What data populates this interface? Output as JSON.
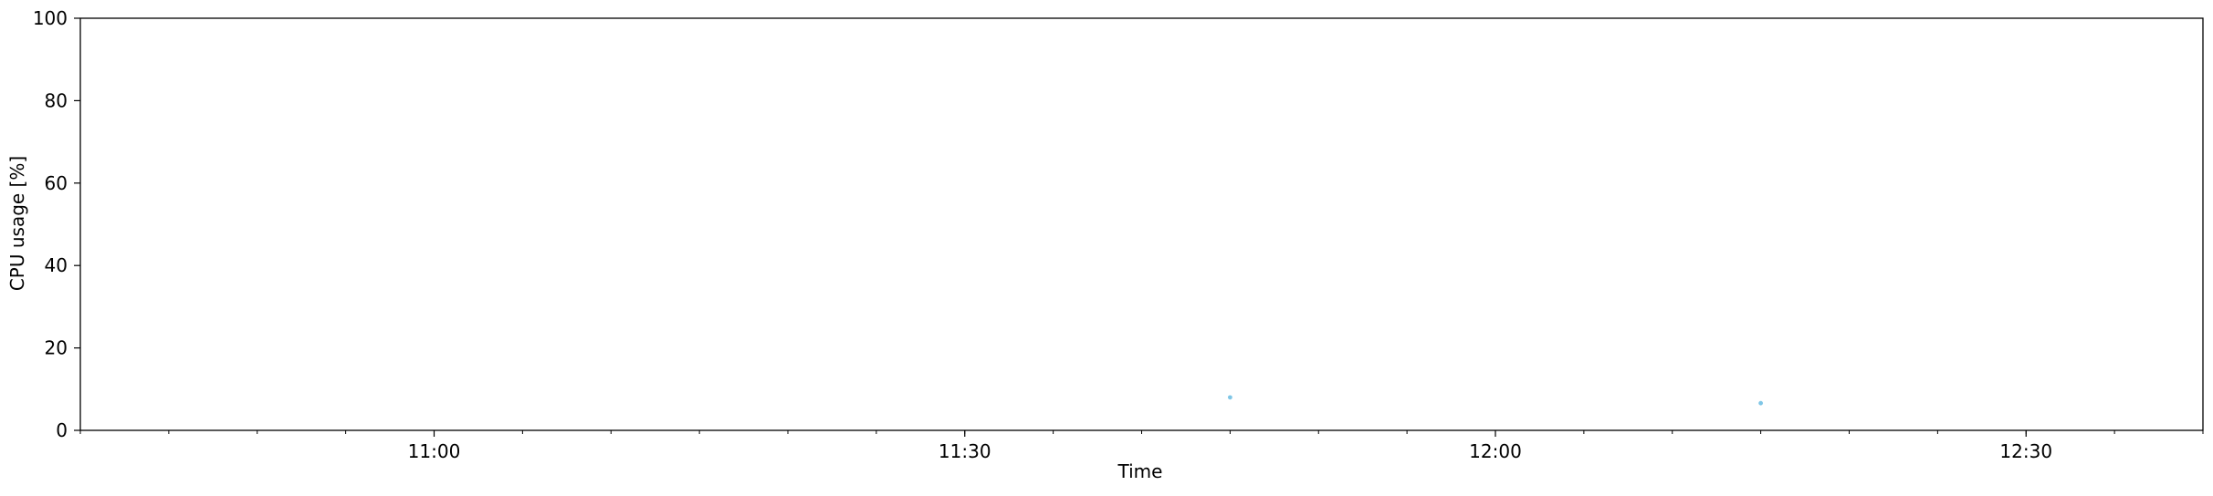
{
  "chart_data": {
    "type": "scatter",
    "title": "",
    "xlabel": "Time",
    "ylabel": "CPU usage [%]",
    "x_axis_type": "time",
    "xlim": [
      "10:40",
      "12:40"
    ],
    "ylim": [
      0,
      100
    ],
    "x_tick_labels": [
      "11:00",
      "11:30",
      "12:00",
      "12:30"
    ],
    "y_tick_labels": [
      "0",
      "20",
      "40",
      "60",
      "80",
      "100"
    ],
    "x_minor_tick_interval_minutes": 5,
    "grid": false,
    "legend": false,
    "series": [
      {
        "points": [
          {
            "x": "11:45",
            "y": 8
          },
          {
            "x": "12:15",
            "y": 6.6
          }
        ]
      }
    ],
    "marker_color": "#7fc6e6"
  }
}
